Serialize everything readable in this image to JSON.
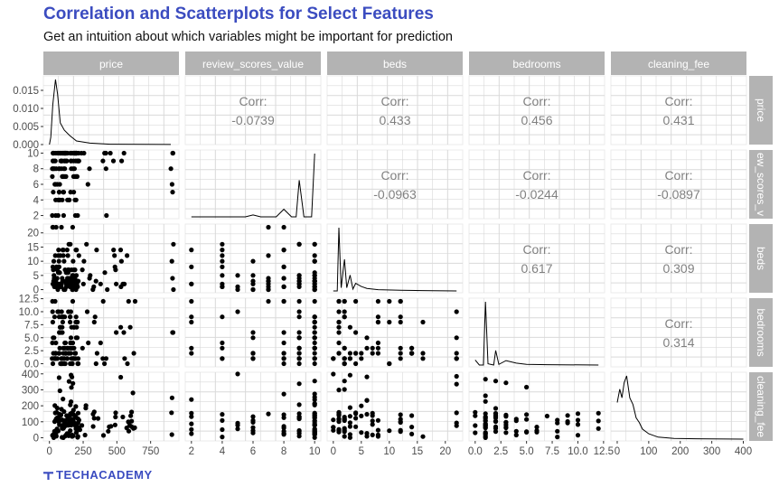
{
  "title": "Correlation and Scatterplots for Select Features",
  "subtitle": "Get an intuition about which variables might be important for prediction",
  "logo": "TECHACADEMY",
  "colors": {
    "title": "#3b4cc0",
    "strip": "#b3b3b3",
    "strip_text": "#ffffff",
    "grid": "#d9d9d9",
    "points": "#000000",
    "corr_text": "#808080"
  },
  "chart_data": {
    "type": "scatter",
    "kind": "pairs plot (correlation matrix with scatterplots)",
    "variables": [
      "price",
      "review_scores_value",
      "beds",
      "bedrooms",
      "cleaning_fee"
    ],
    "row_strip_labels": [
      "price",
      "ew_scores_v",
      "beds",
      "bedrooms",
      "cleaning_fee"
    ],
    "grid": true,
    "corr_label": "Corr:",
    "correlations": [
      {
        "row": "price",
        "col": "review_scores_value",
        "value": "-0.0739"
      },
      {
        "row": "price",
        "col": "beds",
        "value": "0.433"
      },
      {
        "row": "price",
        "col": "bedrooms",
        "value": "0.456"
      },
      {
        "row": "price",
        "col": "cleaning_fee",
        "value": "0.431"
      },
      {
        "row": "review_scores_value",
        "col": "beds",
        "value": "-0.0963"
      },
      {
        "row": "review_scores_value",
        "col": "bedrooms",
        "value": "-0.0244"
      },
      {
        "row": "review_scores_value",
        "col": "cleaning_fee",
        "value": "-0.0897"
      },
      {
        "row": "beds",
        "col": "bedrooms",
        "value": "0.617"
      },
      {
        "row": "beds",
        "col": "cleaning_fee",
        "value": "0.309"
      },
      {
        "row": "bedrooms",
        "col": "cleaning_fee",
        "value": "0.314"
      }
    ],
    "x_ticks": {
      "price": [
        "0",
        "250",
        "500",
        "750"
      ],
      "review_scores_value": [
        "2",
        "4",
        "6",
        "8",
        "10"
      ],
      "beds": [
        "0",
        "5",
        "10",
        "15",
        "20"
      ],
      "bedrooms": [
        "0.0",
        "2.5",
        "5.0",
        "7.5",
        "10.0",
        "12.5"
      ],
      "cleaning_fee": [
        "0",
        "100",
        "200",
        "300",
        "400"
      ]
    },
    "y_ticks": {
      "price": [
        "0.000",
        "0.005",
        "0.010",
        "0.015"
      ],
      "review_scores_value": [
        "2",
        "4",
        "6",
        "8",
        "10"
      ],
      "beds": [
        "0",
        "5",
        "10",
        "15",
        "20"
      ],
      "bedrooms": [
        "0.0",
        "2.5",
        "5.0",
        "7.5",
        "10.0",
        "12.5"
      ],
      "cleaning_fee": [
        "0",
        "100",
        "200",
        "300",
        "400"
      ]
    },
    "ranges": {
      "price": [
        -45,
        960
      ],
      "review_scores_value": [
        1.6,
        10.4
      ],
      "beds": [
        -1.1,
        23.1
      ],
      "bedrooms": [
        -0.6,
        12.6
      ],
      "cleaning_fee": [
        -20,
        410
      ]
    },
    "density_y_range": [
      0,
      0.019
    ],
    "density_peaks": {
      "price": [
        [
          0,
          0
        ],
        [
          10,
          0.002
        ],
        [
          25,
          0.011
        ],
        [
          45,
          0.018
        ],
        [
          60,
          0.014
        ],
        [
          80,
          0.006
        ],
        [
          110,
          0.004
        ],
        [
          150,
          0.0025
        ],
        [
          200,
          0.001
        ],
        [
          300,
          0.0004
        ],
        [
          450,
          0.0001
        ],
        [
          700,
          5e-05
        ],
        [
          900,
          2e-05
        ]
      ],
      "review_scores_value": [
        [
          2,
          0
        ],
        [
          5.5,
          0
        ],
        [
          6,
          0.03
        ],
        [
          6.5,
          0
        ],
        [
          7.5,
          0
        ],
        [
          8,
          0.12
        ],
        [
          8.5,
          0
        ],
        [
          8.8,
          0
        ],
        [
          9,
          0.58
        ],
        [
          9.3,
          0
        ],
        [
          9.8,
          0
        ],
        [
          10,
          1.0
        ]
      ],
      "beds": [
        [
          0,
          0
        ],
        [
          0.7,
          0
        ],
        [
          1,
          1.0
        ],
        [
          1.4,
          0.05
        ],
        [
          2,
          0.5
        ],
        [
          2.4,
          0.05
        ],
        [
          3,
          0.25
        ],
        [
          3.5,
          0.03
        ],
        [
          4,
          0.12
        ],
        [
          5,
          0.07
        ],
        [
          6,
          0.04
        ],
        [
          8,
          0.02
        ],
        [
          12,
          0.01
        ],
        [
          16,
          0.005
        ],
        [
          22,
          0
        ]
      ],
      "bedrooms": [
        [
          0,
          0.08
        ],
        [
          0.4,
          0
        ],
        [
          0.8,
          0
        ],
        [
          1,
          1.0
        ],
        [
          1.25,
          0.02
        ],
        [
          1.8,
          0
        ],
        [
          2,
          0.23
        ],
        [
          2.3,
          0.01
        ],
        [
          3,
          0.07
        ],
        [
          4,
          0.03
        ],
        [
          5,
          0.01
        ],
        [
          7,
          0.005
        ],
        [
          12,
          0
        ]
      ],
      "cleaning_fee": [
        [
          0,
          0.55
        ],
        [
          8,
          0.75
        ],
        [
          15,
          0.62
        ],
        [
          22,
          0.85
        ],
        [
          30,
          0.95
        ],
        [
          40,
          0.62
        ],
        [
          50,
          0.52
        ],
        [
          60,
          0.32
        ],
        [
          70,
          0.25
        ],
        [
          80,
          0.15
        ],
        [
          100,
          0.08
        ],
        [
          130,
          0.03
        ],
        [
          180,
          0.01
        ],
        [
          250,
          0.005
        ],
        [
          400,
          0
        ]
      ]
    }
  }
}
